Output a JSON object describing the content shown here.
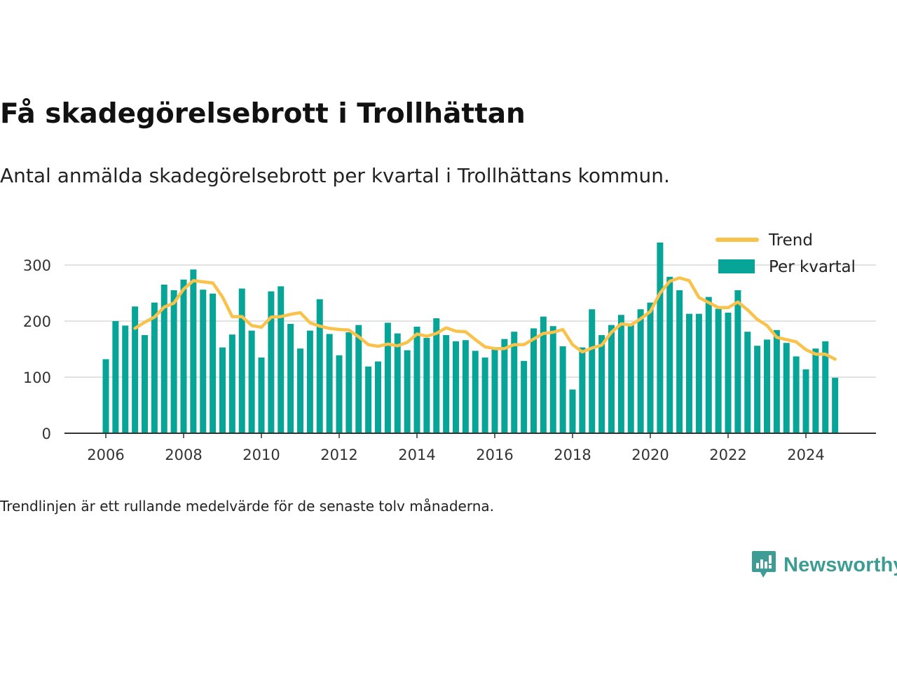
{
  "title": "Få skadegörelsebrott i Trollhättan",
  "subtitle": "Antal anmälda skadegörelsebrott per kvartal i Trollhättans kommun.",
  "footnote": "Trendlinjen är ett rullande medelvärde för de senaste tolv månaderna.",
  "brand": "Newsworthy",
  "colors": {
    "bar": "#06a598",
    "trend": "#f8c24b",
    "grid": "#d9d9d9",
    "axis": "#333333",
    "brand": "#3d9c93"
  },
  "chart_data": {
    "type": "bar",
    "ylim": [
      0,
      340
    ],
    "yticks": [
      0,
      100,
      200,
      300
    ],
    "xticks": [
      "2006",
      "2008",
      "2010",
      "2012",
      "2014",
      "2016",
      "2018",
      "2020",
      "2022",
      "2024"
    ],
    "grid": true,
    "legend_position": "top-right",
    "series": [
      {
        "name": "Per kvartal",
        "type": "bar",
        "x": [
          "2006 K1",
          "2006 K2",
          "2006 K3",
          "2006 K4",
          "2007 K1",
          "2007 K2",
          "2007 K3",
          "2007 K4",
          "2008 K1",
          "2008 K2",
          "2008 K3",
          "2008 K4",
          "2009 K1",
          "2009 K2",
          "2009 K3",
          "2009 K4",
          "2010 K1",
          "2010 K2",
          "2010 K3",
          "2010 K4",
          "2011 K1",
          "2011 K2",
          "2011 K3",
          "2011 K4",
          "2012 K1",
          "2012 K2",
          "2012 K3",
          "2012 K4",
          "2013 K1",
          "2013 K2",
          "2013 K3",
          "2013 K4",
          "2014 K1",
          "2014 K2",
          "2014 K3",
          "2014 K4",
          "2015 K1",
          "2015 K2",
          "2015 K3",
          "2015 K4",
          "2016 K1",
          "2016 K2",
          "2016 K3",
          "2016 K4",
          "2017 K1",
          "2017 K2",
          "2017 K3",
          "2017 K4",
          "2018 K1",
          "2018 K2",
          "2018 K3",
          "2018 K4",
          "2019 K1",
          "2019 K2",
          "2019 K3",
          "2019 K4",
          "2020 K1",
          "2020 K2",
          "2020 K3",
          "2020 K4",
          "2021 K1",
          "2021 K2",
          "2021 K3",
          "2021 K4",
          "2022 K1",
          "2022 K2",
          "2022 K3",
          "2022 K4",
          "2023 K1",
          "2023 K2",
          "2023 K3",
          "2023 K4",
          "2024 K1",
          "2024 K2",
          "2024 K3",
          "2024 K4"
        ],
        "values": [
          132,
          200,
          192,
          226,
          175,
          233,
          265,
          255,
          274,
          292,
          256,
          249,
          153,
          176,
          258,
          183,
          135,
          253,
          262,
          195,
          151,
          183,
          239,
          177,
          139,
          180,
          193,
          119,
          128,
          197,
          178,
          148,
          190,
          170,
          205,
          175,
          164,
          166,
          147,
          135,
          152,
          168,
          181,
          129,
          187,
          208,
          191,
          155,
          78,
          153,
          221,
          175,
          193,
          211,
          193,
          221,
          233,
          340,
          279,
          255,
          213,
          213,
          243,
          222,
          215,
          255,
          181,
          156,
          167,
          184,
          161,
          137,
          114,
          151,
          164,
          99
        ]
      },
      {
        "name": "Trend",
        "type": "line",
        "values": [
          null,
          null,
          null,
          187,
          198,
          207,
          225,
          232,
          257,
          272,
          270,
          268,
          243,
          208,
          208,
          192,
          189,
          207,
          208,
          212,
          215,
          197,
          191,
          187,
          185,
          184,
          172,
          158,
          155,
          159,
          156,
          162,
          177,
          173,
          178,
          188,
          182,
          181,
          167,
          154,
          151,
          151,
          158,
          158,
          168,
          178,
          180,
          185,
          158,
          145,
          152,
          157,
          180,
          195,
          193,
          204,
          217,
          250,
          271,
          277,
          272,
          242,
          233,
          224,
          224,
          234,
          220,
          203,
          192,
          171,
          167,
          163,
          149,
          141,
          141,
          132
        ]
      }
    ]
  }
}
